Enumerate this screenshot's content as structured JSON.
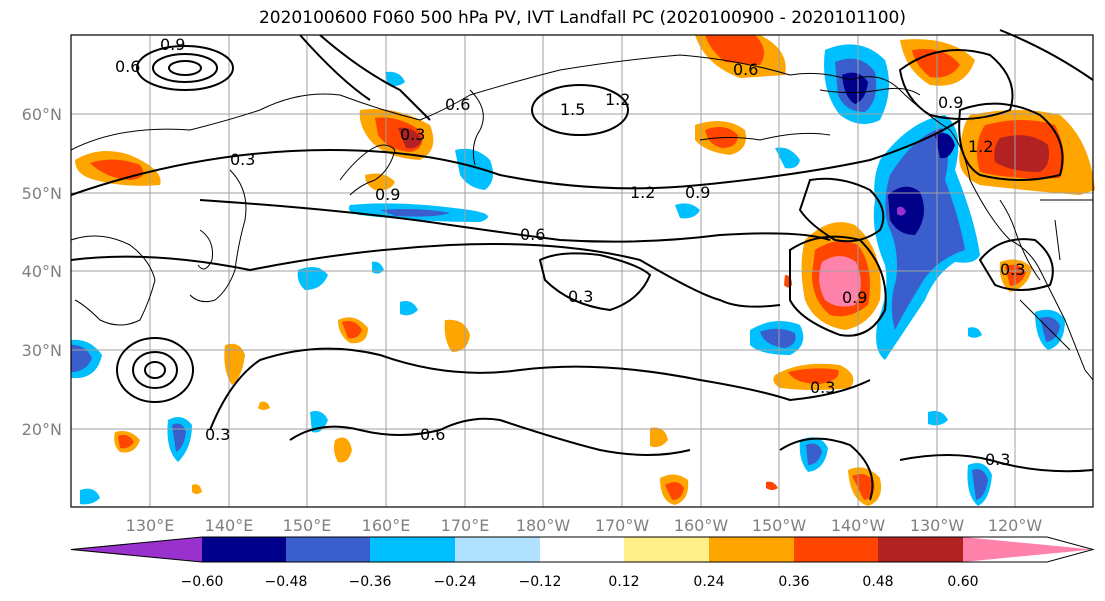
{
  "title": "2020100600 F060 500 hPa PV, IVT Landfall PC (2020100900 - 2020101100)",
  "map": {
    "lat_labels": [
      "60°N",
      "50°N",
      "40°N",
      "30°N",
      "20°N"
    ],
    "lon_labels": [
      "130°E",
      "140°E",
      "150°E",
      "160°E",
      "170°E",
      "180°W",
      "170°W",
      "160°W",
      "150°W",
      "140°W",
      "130°W",
      "120°W"
    ],
    "contour_labels": [
      "0.9",
      "0.6",
      "0.3",
      "1.5",
      "1.2",
      "0.9",
      "0.6",
      "0.3",
      "1.2",
      "0.9",
      "0.6",
      "0.3",
      "0.6",
      "0.3",
      "0.9",
      "0.9",
      "1.2",
      "0.3",
      "0.3",
      "0.6",
      "0.3"
    ]
  },
  "colorbar": {
    "ticks": [
      "−0.60",
      "−0.48",
      "−0.36",
      "−0.24",
      "−0.12",
      "0.12",
      "0.24",
      "0.36",
      "0.48",
      "0.60"
    ],
    "colors": [
      "#9932cc",
      "#00008b",
      "#3a5fcd",
      "#00bfff",
      "#b0e2ff",
      "#ffffff",
      "#fff08c",
      "#ffa500",
      "#ff4500",
      "#b22222",
      "#ff82ab"
    ]
  }
}
